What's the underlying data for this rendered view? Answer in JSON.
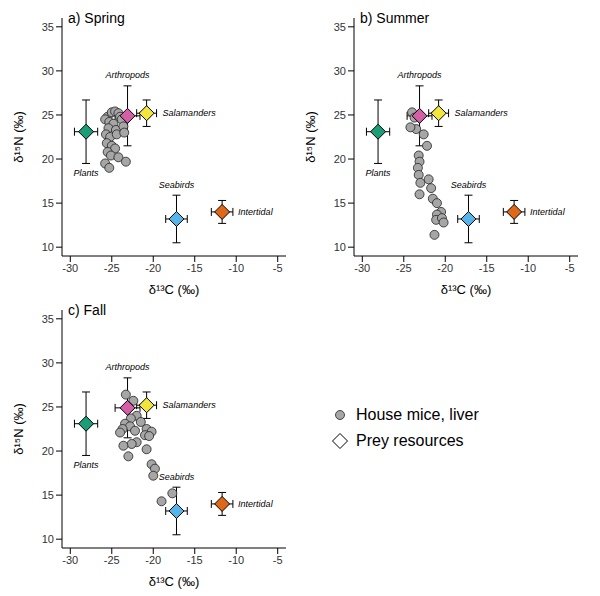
{
  "chart_data": [
    {
      "type": "scatter",
      "title": "a) Spring",
      "x_label": "δ¹³C (‰)",
      "y_label": "δ¹⁵N (‰)",
      "xlim": [
        -31,
        -4
      ],
      "xticks": [
        -30,
        -25,
        -20,
        -15,
        -10,
        -5
      ],
      "ylim": [
        9,
        36
      ],
      "yticks": [
        10,
        15,
        20,
        25,
        30,
        35
      ],
      "grid": false,
      "series": [
        {
          "name": "House mice, liver",
          "marker": "circle",
          "color": "#a6a6a6",
          "x": [
            -25.5,
            -25,
            -24.6,
            -24.2,
            -24,
            -23.8,
            -25.8,
            -25.3,
            -24.8,
            -25.4,
            -24.5,
            -23.6,
            -25.7,
            -25.2,
            -24.4,
            -25.6,
            -25,
            -24.6,
            -25.5,
            -25.1,
            -25.8,
            -25.3,
            -24.2,
            -23.3,
            -23.5
          ],
          "y": [
            24.8,
            25.3,
            25.4,
            25.2,
            24.8,
            24.5,
            24.5,
            24.2,
            24,
            23.5,
            23.3,
            23.7,
            22.8,
            22.5,
            22.8,
            21.8,
            21.5,
            21.2,
            20.8,
            20.4,
            19.5,
            19,
            20.2,
            19.7,
            23
          ]
        },
        {
          "name": "Prey resources",
          "marker": "diamond",
          "labels": [
            "Plants",
            "Arthropods",
            "Salamanders",
            "Seabirds",
            "Intertidal"
          ],
          "x": [
            -28.1,
            -23.1,
            -20.8,
            -17.2,
            -11.7
          ],
          "y": [
            23.1,
            24.9,
            25.2,
            13.2,
            14.0
          ],
          "x_error": [
            1.4,
            1.5,
            1.2,
            1.3,
            1.3
          ],
          "y_error": [
            3.6,
            3.4,
            1.5,
            2.7,
            1.3
          ],
          "colors": [
            "#1b9e77",
            "#d35fa6",
            "#f2e53c",
            "#56b4e9",
            "#e0661a"
          ]
        }
      ]
    },
    {
      "type": "scatter",
      "title": "b) Summer",
      "x_label": "δ¹³C (‰)",
      "y_label": "δ¹⁵N (‰)",
      "xlim": [
        -31,
        -4
      ],
      "xticks": [
        -30,
        -25,
        -20,
        -15,
        -10,
        -5
      ],
      "ylim": [
        9,
        36
      ],
      "yticks": [
        10,
        15,
        20,
        25,
        30,
        35
      ],
      "grid": false,
      "series": [
        {
          "name": "House mice, liver",
          "marker": "circle",
          "color": "#a6a6a6",
          "x": [
            -24,
            -23.7,
            -23.5,
            -24.2,
            -22.6,
            -22.2,
            -23.2,
            -23.1,
            -23.3,
            -23.2,
            -23,
            -22,
            -21.7,
            -23.1,
            -21.5,
            -21,
            -20.5,
            -21,
            -21.1,
            -20.4,
            -20.2,
            -21.3
          ],
          "y": [
            25.3,
            24.7,
            23.4,
            23.6,
            22.8,
            21.5,
            20.4,
            19.7,
            19,
            18.2,
            17.3,
            17.7,
            16.7,
            16,
            15.5,
            15,
            14,
            13.7,
            13.1,
            13.3,
            12.8,
            11.4
          ]
        },
        {
          "name": "Prey resources",
          "marker": "diamond",
          "labels": [
            "Plants",
            "Arthropods",
            "Salamanders",
            "Seabirds",
            "Intertidal"
          ],
          "x": [
            -28.1,
            -23.1,
            -20.8,
            -17.2,
            -11.7
          ],
          "y": [
            23.1,
            24.9,
            25.2,
            13.2,
            14.0
          ],
          "x_error": [
            1.4,
            1.5,
            1.2,
            1.3,
            1.3
          ],
          "y_error": [
            3.6,
            3.4,
            1.5,
            2.7,
            1.3
          ],
          "colors": [
            "#1b9e77",
            "#d35fa6",
            "#f2e53c",
            "#56b4e9",
            "#e0661a"
          ]
        }
      ]
    },
    {
      "type": "scatter",
      "title": "c) Fall",
      "x_label": "δ¹³C (‰)",
      "y_label": "δ¹⁵N (‰)",
      "xlim": [
        -31,
        -4
      ],
      "xticks": [
        -30,
        -25,
        -20,
        -15,
        -10,
        -5
      ],
      "ylim": [
        9,
        36
      ],
      "yticks": [
        10,
        15,
        20,
        25,
        30,
        35
      ],
      "grid": false,
      "series": [
        {
          "name": "House mice, liver",
          "marker": "circle",
          "color": "#a6a6a6",
          "x": [
            -23.3,
            -22.4,
            -23,
            -22,
            -22.7,
            -21.5,
            -23.4,
            -22.8,
            -23.7,
            -24,
            -22.2,
            -20.8,
            -20.2,
            -21,
            -20.5,
            -22,
            -22.6,
            -23.6,
            -20.8,
            -23,
            -20.2,
            -19.8,
            -20,
            -17.7,
            -19
          ],
          "y": [
            26.4,
            25.7,
            25,
            24,
            23.7,
            23.3,
            23.1,
            22.8,
            22.5,
            22.1,
            22.3,
            22.5,
            22.2,
            21.8,
            21.7,
            21,
            20.8,
            20.6,
            20.2,
            19.4,
            18.5,
            18,
            17.2,
            15.2,
            14.3
          ]
        },
        {
          "name": "Prey resources",
          "marker": "diamond",
          "labels": [
            "Plants",
            "Arthropods",
            "Salamanders",
            "Seabirds",
            "Intertidal"
          ],
          "x": [
            -28.1,
            -23.1,
            -20.8,
            -17.2,
            -11.7
          ],
          "y": [
            23.1,
            24.9,
            25.2,
            13.2,
            14.0
          ],
          "x_error": [
            1.4,
            1.5,
            1.2,
            1.3,
            1.3
          ],
          "y_error": [
            3.6,
            3.4,
            1.5,
            2.7,
            1.3
          ],
          "colors": [
            "#1b9e77",
            "#d35fa6",
            "#f2e53c",
            "#56b4e9",
            "#e0661a"
          ]
        }
      ]
    }
  ]
}
